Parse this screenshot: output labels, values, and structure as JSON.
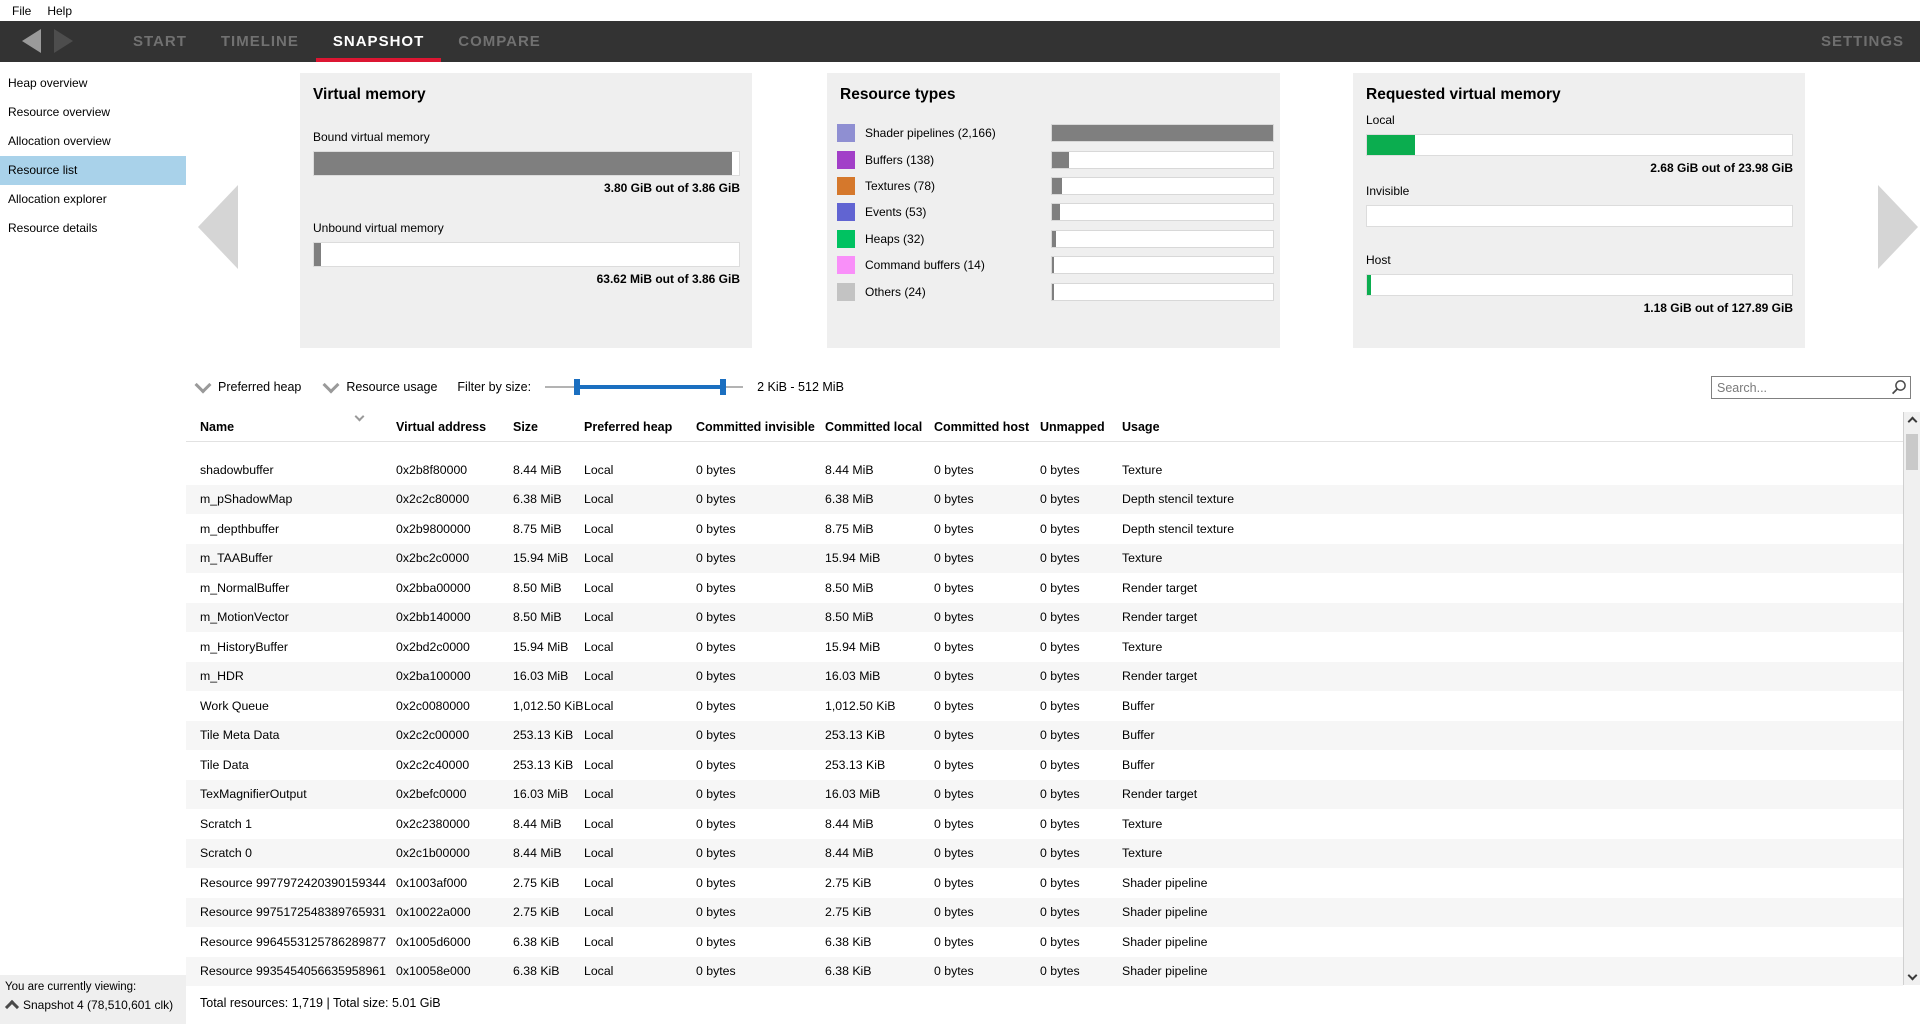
{
  "menu": {
    "file": "File",
    "help": "Help"
  },
  "nav": {
    "tabs": [
      {
        "label": "START",
        "active": false
      },
      {
        "label": "TIMELINE",
        "active": false
      },
      {
        "label": "SNAPSHOT",
        "active": true
      },
      {
        "label": "COMPARE",
        "active": false
      }
    ],
    "settings": "SETTINGS",
    "accent_color": "#dc1632"
  },
  "sidebar": {
    "items": [
      {
        "label": "Heap overview",
        "selected": false
      },
      {
        "label": "Resource overview",
        "selected": false
      },
      {
        "label": "Allocation overview",
        "selected": false
      },
      {
        "label": "Resource list",
        "selected": true
      },
      {
        "label": "Allocation explorer",
        "selected": false
      },
      {
        "label": "Resource details",
        "selected": false
      }
    ],
    "selected_color": "#a9d2ea",
    "footer": {
      "viewing": "You are currently viewing:",
      "snapshot": "Snapshot 4 (78,510,601 clk)"
    }
  },
  "panels": {
    "virtual_memory": {
      "title": "Virtual memory",
      "bars": [
        {
          "label": "Bound virtual memory",
          "caption": "3.80 GiB out of 3.86 GiB",
          "fill_pct": 98.4,
          "color": "#7f7f7f"
        },
        {
          "label": "Unbound virtual memory",
          "caption": "63.62 MiB out of 3.86 GiB",
          "fill_pct": 1.6,
          "color": "#7f7f7f"
        }
      ]
    },
    "resource_types": {
      "title": "Resource types",
      "items": [
        {
          "label": "Shader pipelines (2,166)",
          "color": "#8f8fd2",
          "bar_pct": 100
        },
        {
          "label": "Buffers (138)",
          "color": "#a23fc8",
          "bar_pct": 7.5
        },
        {
          "label": "Textures (78)",
          "color": "#d5782c",
          "bar_pct": 4.5
        },
        {
          "label": "Events (53)",
          "color": "#6164d2",
          "bar_pct": 3.5
        },
        {
          "label": "Heaps (32)",
          "color": "#00c261",
          "bar_pct": 1.8
        },
        {
          "label": "Command buffers (14)",
          "color": "#f98ff9",
          "bar_pct": 0.7
        },
        {
          "label": "Others (24)",
          "color": "#c3c3c3",
          "bar_pct": 1.1
        }
      ]
    },
    "requested_virtual_memory": {
      "title": "Requested virtual memory",
      "bars": [
        {
          "label": "Local",
          "caption": "2.68 GiB out of 23.98 GiB",
          "fill_pct": 11.2,
          "color": "#0bad4f"
        },
        {
          "label": "Invisible",
          "caption": "",
          "fill_pct": 0,
          "color": "#0bad4f"
        },
        {
          "label": "Host",
          "caption": "1.18 GiB out of 127.89 GiB",
          "fill_pct": 1.0,
          "color": "#0bad4f"
        }
      ]
    }
  },
  "filters": {
    "preferred_heap": "Preferred heap",
    "resource_usage": "Resource usage",
    "filter_by_size": "Filter by size:",
    "size_range": "2 KiB - 512 MiB",
    "slider": {
      "low_pct": 16,
      "high_pct": 90
    },
    "search_placeholder": "Search..."
  },
  "table": {
    "columns": [
      "Name",
      "Virtual address",
      "Size",
      "Preferred heap",
      "Committed invisible",
      "Committed local",
      "Committed host",
      "Unmapped",
      "Usage"
    ],
    "rows": [
      [
        "shadowbuffer",
        "0x2b8f80000",
        "8.44 MiB",
        "Local",
        "0 bytes",
        "8.44 MiB",
        "0 bytes",
        "0 bytes",
        "Texture"
      ],
      [
        "m_pShadowMap",
        "0x2c2c80000",
        "6.38 MiB",
        "Local",
        "0 bytes",
        "6.38 MiB",
        "0 bytes",
        "0 bytes",
        "Depth stencil texture"
      ],
      [
        "m_depthbuffer",
        "0x2b9800000",
        "8.75 MiB",
        "Local",
        "0 bytes",
        "8.75 MiB",
        "0 bytes",
        "0 bytes",
        "Depth stencil texture"
      ],
      [
        "m_TAABuffer",
        "0x2bc2c0000",
        "15.94 MiB",
        "Local",
        "0 bytes",
        "15.94 MiB",
        "0 bytes",
        "0 bytes",
        "Texture"
      ],
      [
        "m_NormalBuffer",
        "0x2bba00000",
        "8.50 MiB",
        "Local",
        "0 bytes",
        "8.50 MiB",
        "0 bytes",
        "0 bytes",
        "Render target"
      ],
      [
        "m_MotionVector",
        "0x2bb140000",
        "8.50 MiB",
        "Local",
        "0 bytes",
        "8.50 MiB",
        "0 bytes",
        "0 bytes",
        "Render target"
      ],
      [
        "m_HistoryBuffer",
        "0x2bd2c0000",
        "15.94 MiB",
        "Local",
        "0 bytes",
        "15.94 MiB",
        "0 bytes",
        "0 bytes",
        "Texture"
      ],
      [
        "m_HDR",
        "0x2ba100000",
        "16.03 MiB",
        "Local",
        "0 bytes",
        "16.03 MiB",
        "0 bytes",
        "0 bytes",
        "Render target"
      ],
      [
        "Work Queue",
        "0x2c0080000",
        "1,012.50 KiB",
        "Local",
        "0 bytes",
        "1,012.50 KiB",
        "0 bytes",
        "0 bytes",
        "Buffer"
      ],
      [
        "Tile Meta Data",
        "0x2c2c00000",
        "253.13 KiB",
        "Local",
        "0 bytes",
        "253.13 KiB",
        "0 bytes",
        "0 bytes",
        "Buffer"
      ],
      [
        "Tile Data",
        "0x2c2c40000",
        "253.13 KiB",
        "Local",
        "0 bytes",
        "253.13 KiB",
        "0 bytes",
        "0 bytes",
        "Buffer"
      ],
      [
        "TexMagnifierOutput",
        "0x2befc0000",
        "16.03 MiB",
        "Local",
        "0 bytes",
        "16.03 MiB",
        "0 bytes",
        "0 bytes",
        "Render target"
      ],
      [
        "Scratch 1",
        "0x2c2380000",
        "8.44 MiB",
        "Local",
        "0 bytes",
        "8.44 MiB",
        "0 bytes",
        "0 bytes",
        "Texture"
      ],
      [
        "Scratch 0",
        "0x2c1b00000",
        "8.44 MiB",
        "Local",
        "0 bytes",
        "8.44 MiB",
        "0 bytes",
        "0 bytes",
        "Texture"
      ],
      [
        "Resource 9977972420390159344",
        "0x1003af000",
        "2.75 KiB",
        "Local",
        "0 bytes",
        "2.75 KiB",
        "0 bytes",
        "0 bytes",
        "Shader pipeline"
      ],
      [
        "Resource 9975172548389765931",
        "0x10022a000",
        "2.75 KiB",
        "Local",
        "0 bytes",
        "2.75 KiB",
        "0 bytes",
        "0 bytes",
        "Shader pipeline"
      ],
      [
        "Resource 9964553125786289877",
        "0x1005d6000",
        "6.38 KiB",
        "Local",
        "0 bytes",
        "6.38 KiB",
        "0 bytes",
        "0 bytes",
        "Shader pipeline"
      ],
      [
        "Resource 9935454056635958961",
        "0x10058e000",
        "6.38 KiB",
        "Local",
        "0 bytes",
        "6.38 KiB",
        "0 bytes",
        "0 bytes",
        "Shader pipeline"
      ]
    ],
    "footer": "Total resources: 1,719  |  Total size: 5.01 GiB"
  }
}
